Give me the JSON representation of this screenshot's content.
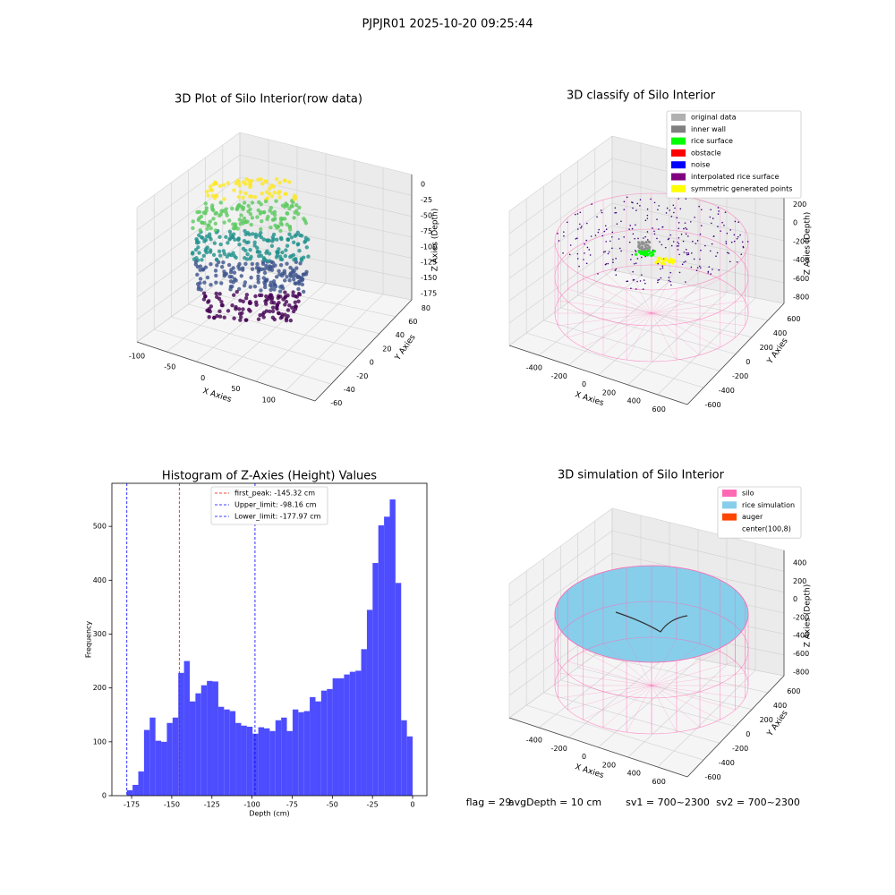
{
  "title": "PJPJR01 2025-10-20 09:25:44",
  "panels": [
    {
      "title": "3D Plot of Silo Interior(row data)",
      "x_label": "X Axies",
      "y_label": "Y Axies",
      "z_label": "Z Axies (Depth)",
      "x_ticks": [
        -100,
        -50,
        0,
        50,
        100
      ],
      "y_ticks": [
        -60,
        -40,
        -20,
        0,
        20,
        40,
        60,
        80
      ],
      "z_ticks": [
        0,
        -25,
        -50,
        -75,
        -100,
        -125,
        -150,
        -175
      ]
    },
    {
      "title": "3D classify of Silo Interior",
      "x_label": "X Axies",
      "y_label": "Y Axies",
      "z_label": "Z Axies (Depth)",
      "x_ticks": [
        -400,
        -200,
        0,
        200,
        400,
        600
      ],
      "y_ticks": [
        -600,
        -400,
        -200,
        0,
        200,
        400,
        600
      ],
      "z_ticks": [
        200,
        0,
        -200,
        -400,
        -600,
        -800
      ],
      "legend": [
        {
          "name": "original data",
          "color": "#b0b0b0"
        },
        {
          "name": "inner wall",
          "color": "#808080"
        },
        {
          "name": "rice surface",
          "color": "#00ff00"
        },
        {
          "name": "obstacle",
          "color": "#ff0000"
        },
        {
          "name": "noise",
          "color": "#0000ff"
        },
        {
          "name": "interpolated rice surface",
          "color": "#800080"
        },
        {
          "name": "symmetric generated points",
          "color": "#ffff00"
        }
      ]
    },
    {
      "title": "3D simulation of Silo Interior",
      "x_label": "X Axies",
      "y_label": "Y Axies",
      "z_label": "Z Axies (Depth)",
      "x_ticks": [
        -400,
        -200,
        0,
        200,
        400,
        600
      ],
      "y_ticks": [
        -600,
        -400,
        -200,
        0,
        200,
        400,
        600
      ],
      "z_ticks": [
        400,
        200,
        0,
        -200,
        -400,
        -600,
        -800
      ],
      "legend": [
        {
          "name": "silo",
          "color": "#ff69b4"
        },
        {
          "name": "rice simulation",
          "color": "#87ceeb"
        },
        {
          "name": "auger",
          "color": "#ff4500"
        },
        {
          "name": "center(100,8)",
          "color": "#ffffff"
        }
      ]
    }
  ],
  "chart_data": {
    "type": "histogram",
    "title": "Histogram of Z-Axies (Height) Values",
    "x_label": "Depth (cm)",
    "y_label": "Frequency",
    "color": "#4d4dff",
    "bins": [
      -177.97,
      -174.41,
      -170.85,
      -167.29,
      -163.73,
      -160.17,
      -156.61,
      -153.05,
      -149.49,
      -145.93,
      -142.38,
      -138.82,
      -135.26,
      -131.7,
      -128.14,
      -124.58,
      -121.02,
      -117.46,
      -113.9,
      -110.34,
      -106.78,
      -103.22,
      -99.66,
      -96.1,
      -92.54,
      -88.99,
      -85.43,
      -81.87,
      -78.31,
      -74.75,
      -71.19,
      -67.63,
      -64.07,
      -60.51,
      -56.95,
      -53.39,
      -49.83,
      -46.27,
      -42.71,
      -39.15,
      -35.59,
      -32.04,
      -28.48,
      -24.92,
      -21.36,
      -17.8,
      -14.24,
      -10.68,
      -7.12,
      -3.56,
      0
    ],
    "counts": [
      10,
      20,
      45,
      122,
      145,
      102,
      100,
      135,
      145,
      228,
      250,
      175,
      190,
      205,
      213,
      212,
      165,
      160,
      157,
      135,
      130,
      128,
      115,
      127,
      125,
      120,
      140,
      145,
      120,
      160,
      155,
      157,
      183,
      175,
      195,
      198,
      218,
      218,
      225,
      230,
      232,
      272,
      345,
      432,
      502,
      518,
      550,
      395,
      140,
      110
    ],
    "xlim": [
      -187.3,
      8.9
    ],
    "ylim": [
      0,
      580
    ],
    "xticks": [
      -175,
      -150,
      -125,
      -100,
      -75,
      -50,
      -25,
      0
    ],
    "yticks": [
      0,
      100,
      200,
      300,
      400,
      500
    ],
    "lines": [
      {
        "name": "first_peak: -145.32 cm",
        "value": -145.32,
        "color": "#ff0000"
      },
      {
        "name": "Upper_limit: -98.16 cm",
        "value": -98.16,
        "color": "#0000ff"
      },
      {
        "name": "Lower_limit: -177.97 cm",
        "value": -177.97,
        "color": "#0000ff"
      }
    ]
  },
  "footer": [
    "flag = 29",
    "avgDepth = 10 cm",
    "sv1 = 700~2300",
    "sv2 = 700~2300"
  ]
}
